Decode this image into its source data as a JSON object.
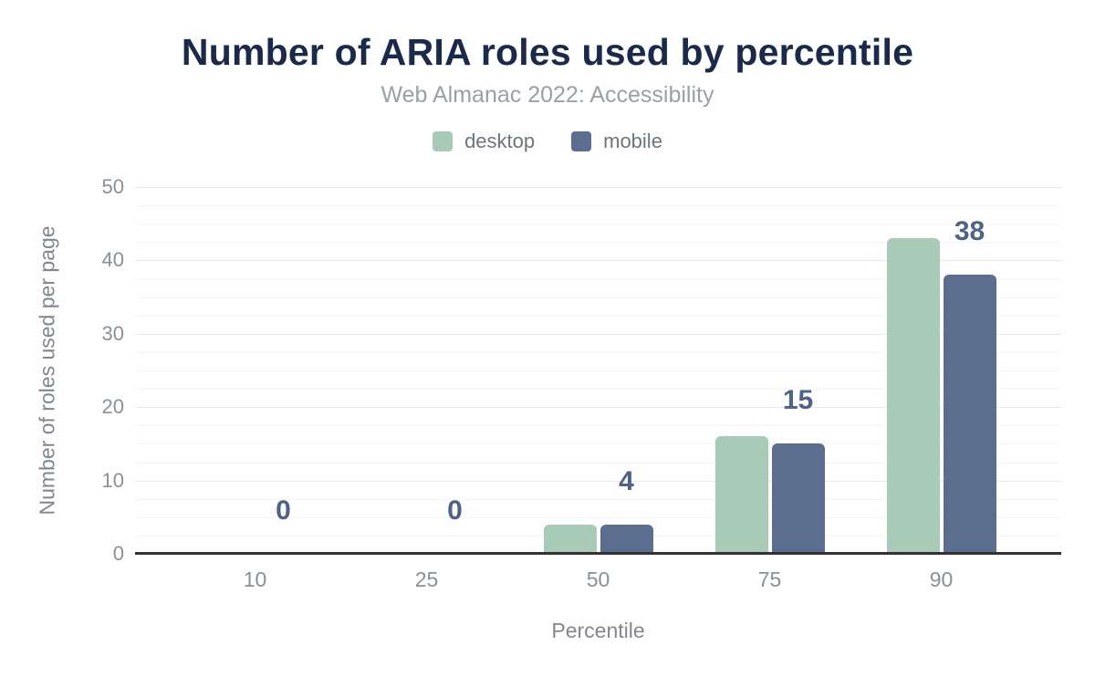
{
  "title": "Number of ARIA roles used by percentile",
  "subtitle": "Web Almanac 2022: Accessibility",
  "legend": {
    "items": [
      {
        "label": "desktop",
        "color": "#a8cbb7"
      },
      {
        "label": "mobile",
        "color": "#5c6e90"
      }
    ]
  },
  "chart_data": {
    "type": "bar",
    "title": "Number of ARIA roles used by percentile",
    "subtitle": "Web Almanac 2022: Accessibility",
    "categories": [
      "10",
      "25",
      "50",
      "75",
      "90"
    ],
    "series": [
      {
        "name": "desktop",
        "color": "#a8cbb7",
        "values": [
          0,
          0,
          4,
          16,
          43
        ]
      },
      {
        "name": "mobile",
        "color": "#5c6e90",
        "values": [
          0,
          0,
          4,
          15,
          38
        ]
      }
    ],
    "bar_value_labels": {
      "series": "mobile",
      "values": [
        "0",
        "0",
        "4",
        "15",
        "38"
      ]
    },
    "xlabel": "Percentile",
    "ylabel": "Number of roles used per page",
    "ylim": [
      0,
      50
    ],
    "yticks": [
      0,
      10,
      20,
      30,
      40,
      50
    ],
    "minor_grid_step": 2.5,
    "grid": "on",
    "legend_position": "top",
    "colors": {
      "title": "#1a2a4c",
      "subtitle": "#9aa0a8",
      "legend_label": "#6e747c",
      "axis_line": "#333333",
      "tick_label": "#8a9099",
      "axis_title": "#82878f",
      "value_label": "#4f628a",
      "major_grid": "#e9e9e9",
      "minor_grid": "#f6f6f6"
    }
  }
}
